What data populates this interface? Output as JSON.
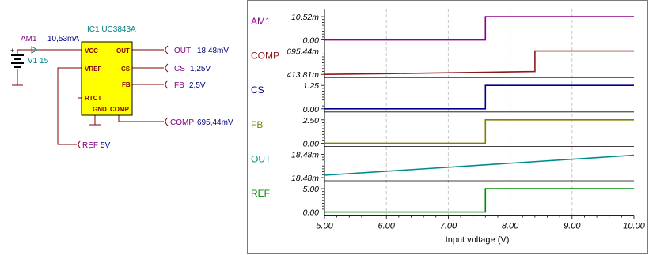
{
  "schematic": {
    "ic_label": "IC1 UC3843A",
    "pins": {
      "vcc": "VCC",
      "out": "OUT",
      "vref": "VREF",
      "cs": "CS",
      "fb": "FB",
      "rtct": "RTCT",
      "gnd": "GND",
      "comp": "COMP"
    },
    "ammeter_label": "AM1",
    "ammeter_value": "10,53mA",
    "source_label": "V1 15",
    "probes": {
      "out": {
        "name": "OUT",
        "value": "18,48mV"
      },
      "cs": {
        "name": "CS",
        "value": "1,25V"
      },
      "fb": {
        "name": "FB",
        "value": "2,5V"
      },
      "comp": {
        "name": "COMP",
        "value": "695,44mV"
      },
      "ref": {
        "name": "REF",
        "value": "5V"
      }
    },
    "colors": {
      "ic_fill": "#ffff00",
      "wire": "#800000",
      "label_teal": "#008080",
      "label_purple": "#800080",
      "label_navy": "#000080",
      "probe": "#8b0000"
    }
  },
  "chart_data": {
    "type": "line",
    "xlabel": "Input voltage (V)",
    "x_ticks": [
      "5.00",
      "6.00",
      "7.00",
      "8.00",
      "9.00",
      "10.00"
    ],
    "xlim": [
      5,
      10
    ],
    "grid": "vertical dashed",
    "series": [
      {
        "name": "AM1",
        "color": "#8b008b",
        "tick_top": "10.52m",
        "tick_bottom": "0.00",
        "x": [
          5.0,
          7.6,
          7.6,
          8.4,
          8.4,
          10.0
        ],
        "y": [
          0,
          0,
          1,
          1,
          1,
          1
        ],
        "ylim": [
          0,
          1
        ]
      },
      {
        "name": "COMP",
        "color": "#8b1a1a",
        "tick_top": "695.44m",
        "tick_bottom": "413.81m",
        "x": [
          5.0,
          6.0,
          7.6,
          7.6,
          8.4,
          8.4,
          10.0
        ],
        "y": [
          0,
          0.03,
          0.09,
          0.09,
          0.12,
          1,
          1
        ],
        "ylim": [
          0,
          1
        ]
      },
      {
        "name": "CS",
        "color": "#00008b",
        "tick_top": "1.25",
        "tick_bottom": "0.00",
        "x": [
          5.0,
          7.6,
          7.6,
          8.4,
          8.4,
          10.0
        ],
        "y": [
          0,
          0,
          1,
          1,
          1,
          1
        ],
        "ylim": [
          0,
          1
        ]
      },
      {
        "name": "FB",
        "color": "#808000",
        "tick_top": "2.50",
        "tick_bottom": "0.00",
        "x": [
          5.0,
          7.6,
          7.6,
          8.4,
          8.4,
          10.0
        ],
        "y": [
          0,
          0,
          1,
          1,
          1,
          1
        ],
        "ylim": [
          0,
          1
        ]
      },
      {
        "name": "OUT",
        "color": "#008b8b",
        "tick_top": "18.48m",
        "tick_bottom": "18.48m",
        "x": [
          5.0,
          10.0
        ],
        "y": [
          0.1,
          0.96
        ],
        "ylim": [
          0,
          1
        ]
      },
      {
        "name": "REF",
        "color": "#008b00",
        "tick_top": "5.00",
        "tick_bottom": "0.00",
        "x": [
          5.0,
          7.6,
          7.6,
          8.4,
          8.4,
          10.0
        ],
        "y": [
          0,
          0,
          1,
          1,
          1,
          1
        ],
        "ylim": [
          0,
          1
        ]
      }
    ]
  }
}
